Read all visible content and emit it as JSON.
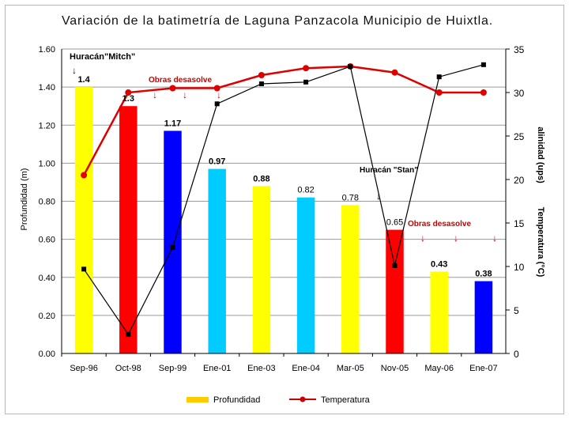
{
  "chart_data": {
    "type": "bar+line",
    "title": "Variación de la batimetría de Laguna Panzacola Municipio de Huixtla.",
    "categories": [
      "Sep-96",
      "Oct-98",
      "Sep-99",
      "Ene-01",
      "Ene-03",
      "Ene-04",
      "Mar-05",
      "Nov-05",
      "May-06",
      "Ene-07"
    ],
    "ylabel_left": "Profundidad (m)",
    "ylabel_right_1": "alinidad (ups)",
    "ylabel_right_2": "Temperatura (°C)",
    "ylim_left": [
      0,
      1.6
    ],
    "ylim_right": [
      0,
      35
    ],
    "yticks_left": [
      "0.00",
      "0.20",
      "0.40",
      "0.60",
      "0.80",
      "1.00",
      "1.20",
      "1.40",
      "1.60"
    ],
    "yticks_right": [
      "0",
      "5",
      "10",
      "15",
      "20",
      "25",
      "30",
      "35"
    ],
    "bars": {
      "name": "Profundidad",
      "values": [
        1.4,
        1.3,
        1.17,
        0.97,
        0.88,
        0.82,
        0.78,
        0.65,
        0.43,
        0.38
      ],
      "labels": [
        "1.4",
        "1.3",
        "1.17",
        "0.97",
        "0.88",
        "0.82",
        "0.78",
        "0.65",
        "0.43",
        "0.38"
      ],
      "colors": [
        "#ffff00",
        "#ff0000",
        "#0000ff",
        "#00ccff",
        "#ffff00",
        "#00ccff",
        "#ffff00",
        "#ff0000",
        "#ffff00",
        "#0000ff"
      ]
    },
    "series": [
      {
        "name": "Temperatura",
        "axis": "right",
        "color": "#dd0000",
        "marker": "circle",
        "values": [
          20.5,
          30,
          30.5,
          30.5,
          32,
          32.8,
          33,
          32.3,
          30,
          30
        ]
      },
      {
        "name": "Salinidad",
        "axis": "right",
        "color": "#000000",
        "marker": "square",
        "values": [
          9.7,
          2.2,
          12.2,
          28.7,
          31,
          31.2,
          33,
          10.1,
          31.8,
          33.2
        ]
      }
    ],
    "legend": {
      "position": "bottom",
      "items": [
        {
          "label": "Profundidad",
          "color": "#ffcc00"
        },
        {
          "label": "Temperatura",
          "color": "#cc0000"
        }
      ]
    },
    "annotations": {
      "mitch": "Huracán\"Mitch\"",
      "obras1": "Obras desasolve",
      "stan": "Huracán \"Stan\"",
      "obras2": "Obras desasolve"
    }
  }
}
